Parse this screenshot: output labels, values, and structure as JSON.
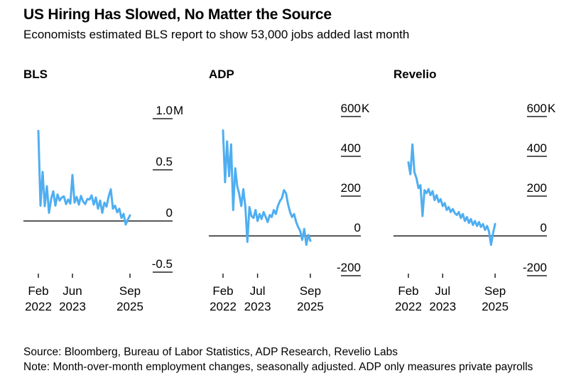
{
  "header": {
    "title": "US Hiring Has Slowed, No Matter the Source",
    "subtitle": "Economists estimated BLS report to show 53,000 jobs added last month"
  },
  "footer": {
    "source": "Source: Bloomberg, Bureau of Labor Statistics, ADP Research, Revelio Labs",
    "note": "Note: Month-over-month employment changes, seasonally adjusted. ADP only measures private payrolls"
  },
  "colors": {
    "line": "#4FAEF1",
    "zero_line": "#58595B",
    "tick": "#222222",
    "text": "#000000",
    "background": "#FFFFFF"
  },
  "chart_data": [
    {
      "panel": "BLS",
      "type": "line",
      "units": "jobs added, thousands (axis shown in millions)",
      "frequency": "monthly",
      "x_start": "Feb 2022",
      "x_end": "Sep 2025",
      "ylim_thousands": [
        -500,
        1000
      ],
      "yticks": [
        {
          "num": "1.0",
          "suffix": "M",
          "value": 1000
        },
        {
          "num": "0.5",
          "suffix": "",
          "value": 500
        },
        {
          "num": "0",
          "suffix": "",
          "value": 0
        },
        {
          "num": "-0.5",
          "suffix": "",
          "value": -500
        }
      ],
      "xticks": [
        {
          "line1": "Feb",
          "line2": "2022",
          "month_index": 0
        },
        {
          "line1": "Jun",
          "line2": "2023",
          "month_index": 16
        },
        {
          "line1": "Sep",
          "line2": "2025",
          "month_index": 43
        }
      ],
      "values_thousands": [
        880,
        150,
        480,
        145,
        340,
        80,
        215,
        290,
        150,
        260,
        200,
        230,
        240,
        165,
        210,
        170,
        450,
        180,
        235,
        160,
        245,
        190,
        165,
        215,
        210,
        250,
        160,
        230,
        120,
        200,
        80,
        180,
        140,
        240,
        310,
        120,
        150,
        85,
        120,
        30,
        70,
        -35,
        15,
        55
      ]
    },
    {
      "panel": "ADP",
      "type": "line",
      "units": "jobs added, thousands",
      "frequency": "monthly",
      "x_start": "Feb 2022",
      "x_end": "Sep 2025",
      "ylim_thousands": [
        -200,
        600
      ],
      "yticks": [
        {
          "num": "600",
          "suffix": "K",
          "value": 600
        },
        {
          "num": "400",
          "suffix": "",
          "value": 400
        },
        {
          "num": "200",
          "suffix": "",
          "value": 200
        },
        {
          "num": "0",
          "suffix": "",
          "value": 0
        },
        {
          "num": "-200",
          "suffix": "",
          "value": -200
        }
      ],
      "xticks": [
        {
          "line1": "Feb",
          "line2": "2022",
          "month_index": 0
        },
        {
          "line1": "Jul",
          "line2": "2023",
          "month_index": 17
        },
        {
          "line1": "Sep",
          "line2": "2025",
          "month_index": 43
        }
      ],
      "values_thousands": [
        530,
        270,
        475,
        300,
        460,
        130,
        340,
        250,
        210,
        150,
        235,
        145,
        -30,
        145,
        100,
        90,
        130,
        75,
        110,
        85,
        120,
        95,
        70,
        105,
        95,
        130,
        110,
        150,
        175,
        190,
        230,
        215,
        160,
        120,
        95,
        110,
        70,
        45,
        25,
        -20,
        35,
        -45,
        5,
        -25
      ]
    },
    {
      "panel": "Revelio",
      "type": "line",
      "units": "jobs added, thousands",
      "frequency": "monthly",
      "x_start": "Feb 2022",
      "x_end": "Sep 2025",
      "ylim_thousands": [
        -200,
        600
      ],
      "yticks": [
        {
          "num": "600",
          "suffix": "K",
          "value": 600
        },
        {
          "num": "400",
          "suffix": "",
          "value": 400
        },
        {
          "num": "200",
          "suffix": "",
          "value": 200
        },
        {
          "num": "0",
          "suffix": "",
          "value": 0
        },
        {
          "num": "-200",
          "suffix": "",
          "value": -200
        }
      ],
      "xticks": [
        {
          "line1": "Feb",
          "line2": "2022",
          "month_index": 0
        },
        {
          "line1": "Jul",
          "line2": "2023",
          "month_index": 17
        },
        {
          "line1": "Sep",
          "line2": "2025",
          "month_index": 43
        }
      ],
      "values_thousands": [
        370,
        310,
        460,
        320,
        290,
        240,
        255,
        100,
        230,
        215,
        235,
        205,
        225,
        180,
        205,
        170,
        185,
        150,
        165,
        130,
        145,
        120,
        135,
        115,
        105,
        120,
        90,
        110,
        75,
        95,
        65,
        85,
        55,
        75,
        50,
        70,
        45,
        60,
        30,
        50,
        20,
        -45,
        15,
        60
      ]
    }
  ]
}
